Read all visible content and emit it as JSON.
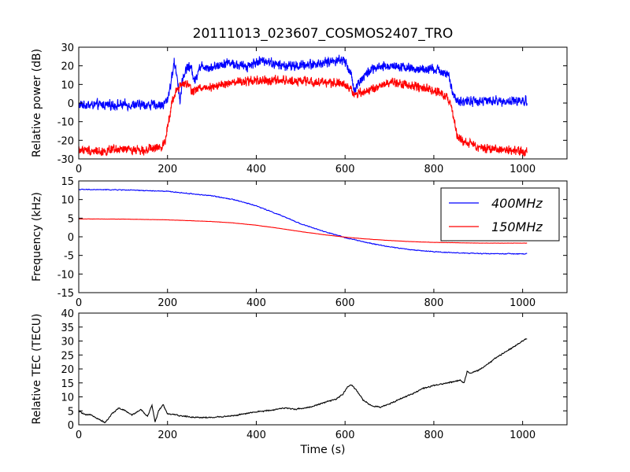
{
  "figure": {
    "title": "20111013_023607_COSMOS2407_TRO",
    "xlabel": "Time (s)"
  },
  "chart_data": [
    {
      "type": "line",
      "ylabel": "Relative power (dB)",
      "xlim": [
        0,
        1100
      ],
      "ylim": [
        -30,
        30
      ],
      "xticks": [
        0,
        200,
        400,
        600,
        800,
        1000
      ],
      "yticks": [
        -30,
        -20,
        -10,
        0,
        10,
        20,
        30
      ],
      "grid": false,
      "series": [
        {
          "color": "#0000ff",
          "noise": 2.8,
          "points": [
            [
              0,
              -1
            ],
            [
              100,
              -1
            ],
            [
              190,
              -1
            ],
            [
              200,
              2
            ],
            [
              210,
              14
            ],
            [
              215,
              22
            ],
            [
              222,
              14
            ],
            [
              228,
              1
            ],
            [
              235,
              14
            ],
            [
              245,
              20
            ],
            [
              255,
              18
            ],
            [
              262,
              11
            ],
            [
              270,
              19
            ],
            [
              280,
              20
            ],
            [
              300,
              19
            ],
            [
              320,
              21
            ],
            [
              340,
              22
            ],
            [
              360,
              20
            ],
            [
              380,
              20
            ],
            [
              400,
              22
            ],
            [
              420,
              23
            ],
            [
              440,
              21
            ],
            [
              460,
              20
            ],
            [
              480,
              20
            ],
            [
              500,
              20
            ],
            [
              520,
              21
            ],
            [
              540,
              21
            ],
            [
              560,
              22
            ],
            [
              580,
              23
            ],
            [
              600,
              23
            ],
            [
              612,
              16
            ],
            [
              622,
              7
            ],
            [
              630,
              11
            ],
            [
              645,
              15
            ],
            [
              660,
              18
            ],
            [
              680,
              19
            ],
            [
              700,
              20
            ],
            [
              720,
              20
            ],
            [
              740,
              19
            ],
            [
              760,
              18
            ],
            [
              780,
              18
            ],
            [
              800,
              18
            ],
            [
              820,
              17
            ],
            [
              835,
              14
            ],
            [
              843,
              4
            ],
            [
              850,
              1
            ],
            [
              900,
              1
            ],
            [
              1010,
              1
            ]
          ]
        },
        {
          "color": "#ff0000",
          "noise": 2.6,
          "points": [
            [
              0,
              -25
            ],
            [
              50,
              -26
            ],
            [
              100,
              -25
            ],
            [
              150,
              -25
            ],
            [
              185,
              -24
            ],
            [
              195,
              -20
            ],
            [
              200,
              -12
            ],
            [
              205,
              -6
            ],
            [
              210,
              0
            ],
            [
              220,
              7
            ],
            [
              232,
              10
            ],
            [
              245,
              10
            ],
            [
              258,
              6
            ],
            [
              270,
              8
            ],
            [
              300,
              9
            ],
            [
              330,
              10
            ],
            [
              360,
              11
            ],
            [
              400,
              12
            ],
            [
              450,
              12
            ],
            [
              500,
              12
            ],
            [
              550,
              11
            ],
            [
              590,
              11
            ],
            [
              605,
              9
            ],
            [
              620,
              5
            ],
            [
              640,
              6
            ],
            [
              660,
              7
            ],
            [
              700,
              11
            ],
            [
              740,
              10
            ],
            [
              760,
              9
            ],
            [
              780,
              8
            ],
            [
              800,
              7
            ],
            [
              820,
              5
            ],
            [
              835,
              1
            ],
            [
              845,
              -8
            ],
            [
              852,
              -18
            ],
            [
              870,
              -21
            ],
            [
              900,
              -24
            ],
            [
              950,
              -25
            ],
            [
              1010,
              -26
            ]
          ]
        }
      ]
    },
    {
      "type": "line",
      "ylabel": "Frequency (kHz)",
      "xlim": [
        0,
        1100
      ],
      "ylim": [
        -15,
        15
      ],
      "xticks": [
        0,
        200,
        400,
        600,
        800,
        1000
      ],
      "yticks": [
        -15,
        -10,
        -5,
        0,
        5,
        10,
        15
      ],
      "grid": false,
      "legend": "top-right",
      "series": [
        {
          "name": "400MHz",
          "color": "#0000ff",
          "noise": 0.12,
          "points": [
            [
              0,
              12.7
            ],
            [
              100,
              12.6
            ],
            [
              200,
              12.2
            ],
            [
              300,
              11.0
            ],
            [
              350,
              10.0
            ],
            [
              400,
              8.3
            ],
            [
              450,
              6.0
            ],
            [
              500,
              3.5
            ],
            [
              550,
              1.5
            ],
            [
              600,
              -0.2
            ],
            [
              650,
              -1.6
            ],
            [
              700,
              -2.7
            ],
            [
              750,
              -3.5
            ],
            [
              800,
              -4.0
            ],
            [
              850,
              -4.3
            ],
            [
              900,
              -4.5
            ],
            [
              1010,
              -4.6
            ]
          ]
        },
        {
          "name": "150MHz",
          "color": "#ff0000",
          "noise": 0.03,
          "points": [
            [
              0,
              4.8
            ],
            [
              100,
              4.75
            ],
            [
              200,
              4.55
            ],
            [
              300,
              4.1
            ],
            [
              350,
              3.7
            ],
            [
              400,
              3.1
            ],
            [
              450,
              2.3
            ],
            [
              500,
              1.4
            ],
            [
              550,
              0.6
            ],
            [
              600,
              -0.1
            ],
            [
              650,
              -0.6
            ],
            [
              700,
              -1.0
            ],
            [
              750,
              -1.3
            ],
            [
              800,
              -1.5
            ],
            [
              850,
              -1.6
            ],
            [
              900,
              -1.7
            ],
            [
              1010,
              -1.7
            ]
          ]
        }
      ]
    },
    {
      "type": "line",
      "ylabel": "Relative TEC (TECU)",
      "xlim": [
        0,
        1100
      ],
      "ylim": [
        0,
        40
      ],
      "xticks": [
        0,
        200,
        400,
        600,
        800,
        1000
      ],
      "yticks": [
        0,
        5,
        10,
        15,
        20,
        25,
        30,
        35,
        40
      ],
      "grid": false,
      "series": [
        {
          "color": "#000000",
          "noise": 0.25,
          "points": [
            [
              0,
              5
            ],
            [
              15,
              3.5
            ],
            [
              30,
              3.5
            ],
            [
              45,
              2
            ],
            [
              60,
              0.8
            ],
            [
              75,
              4
            ],
            [
              90,
              6
            ],
            [
              105,
              5
            ],
            [
              120,
              3.5
            ],
            [
              140,
              5.5
            ],
            [
              155,
              3
            ],
            [
              165,
              7
            ],
            [
              172,
              1
            ],
            [
              180,
              5
            ],
            [
              190,
              7.2
            ],
            [
              200,
              4
            ],
            [
              230,
              3.2
            ],
            [
              260,
              2.7
            ],
            [
              300,
              2.6
            ],
            [
              350,
              3.3
            ],
            [
              400,
              4.6
            ],
            [
              440,
              5.4
            ],
            [
              460,
              6
            ],
            [
              490,
              5.6
            ],
            [
              520,
              6.3
            ],
            [
              550,
              7.8
            ],
            [
              580,
              9.2
            ],
            [
              595,
              11
            ],
            [
              605,
              13.5
            ],
            [
              615,
              14.2
            ],
            [
              625,
              12.5
            ],
            [
              640,
              9
            ],
            [
              660,
              6.7
            ],
            [
              680,
              6.3
            ],
            [
              700,
              7.5
            ],
            [
              720,
              9
            ],
            [
              750,
              11
            ],
            [
              775,
              13
            ],
            [
              800,
              14
            ],
            [
              830,
              15
            ],
            [
              860,
              16
            ],
            [
              868,
              15
            ],
            [
              875,
              19
            ],
            [
              885,
              18.5
            ],
            [
              900,
              19.5
            ],
            [
              920,
              21.5
            ],
            [
              940,
              24
            ],
            [
              960,
              26
            ],
            [
              980,
              28
            ],
            [
              1000,
              30
            ],
            [
              1010,
              31
            ]
          ]
        }
      ]
    }
  ]
}
